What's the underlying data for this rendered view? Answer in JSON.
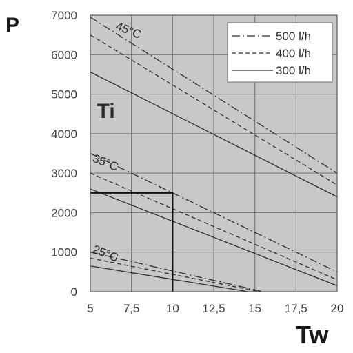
{
  "chart_data": {
    "type": "line",
    "xlabel": "Tw",
    "ylabel": "P",
    "xlim": [
      5,
      20
    ],
    "ylim": [
      0,
      7000
    ],
    "x_ticks": [
      "5",
      "7,5",
      "10",
      "12,5",
      "15",
      "17,5",
      "20"
    ],
    "x_tick_values": [
      5,
      7.5,
      10,
      12.5,
      15,
      17.5,
      20
    ],
    "y_ticks": [
      "0",
      "1000",
      "2000",
      "3000",
      "4000",
      "5000",
      "6000",
      "7000"
    ],
    "y_tick_values": [
      0,
      1000,
      2000,
      3000,
      4000,
      5000,
      6000,
      7000
    ],
    "grid": true,
    "legend_position": "top-right",
    "legend": [
      {
        "label": "500 l/h",
        "style": "dashdot"
      },
      {
        "label": "400 l/h",
        "style": "dashed"
      },
      {
        "label": "300 l/h",
        "style": "solid"
      }
    ],
    "series": [
      {
        "group": "45°C",
        "flow": "500 l/h",
        "style": "dashdot",
        "x": [
          5,
          20
        ],
        "y": [
          6950,
          3000
        ]
      },
      {
        "group": "45°C",
        "flow": "400 l/h",
        "style": "dashed",
        "x": [
          5,
          20
        ],
        "y": [
          6500,
          2700
        ]
      },
      {
        "group": "45°C",
        "flow": "300 l/h",
        "style": "solid",
        "x": [
          5,
          20
        ],
        "y": [
          5560,
          2400
        ]
      },
      {
        "group": "35°C",
        "flow": "500 l/h",
        "style": "dashdot",
        "x": [
          5,
          20
        ],
        "y": [
          3500,
          500
        ]
      },
      {
        "group": "35°C",
        "flow": "400 l/h",
        "style": "dashed",
        "x": [
          5,
          20
        ],
        "y": [
          3000,
          300
        ]
      },
      {
        "group": "35°C",
        "flow": "300 l/h",
        "style": "solid",
        "x": [
          5,
          20
        ],
        "y": [
          2600,
          150
        ]
      },
      {
        "group": "25°C",
        "flow": "500 l/h",
        "style": "dashdot",
        "x": [
          5,
          15.5
        ],
        "y": [
          1000,
          0
        ]
      },
      {
        "group": "25°C",
        "flow": "400 l/h",
        "style": "dashed",
        "x": [
          5,
          15.3
        ],
        "y": [
          850,
          0
        ]
      },
      {
        "group": "25°C",
        "flow": "300 l/h",
        "style": "solid",
        "x": [
          5,
          14.6
        ],
        "y": [
          650,
          0
        ]
      }
    ],
    "annotations": [
      {
        "text": "45°C",
        "x": 6.5,
        "y": 6650
      },
      {
        "text": "35°C",
        "x": 5.1,
        "y": 3300
      },
      {
        "text": "25°C",
        "x": 5.1,
        "y": 1000
      },
      {
        "text": "Ti",
        "x": 5.4,
        "y": 4400
      }
    ],
    "reference_line": {
      "x": [
        5,
        10,
        10
      ],
      "y": [
        2500,
        2500,
        0
      ]
    }
  }
}
